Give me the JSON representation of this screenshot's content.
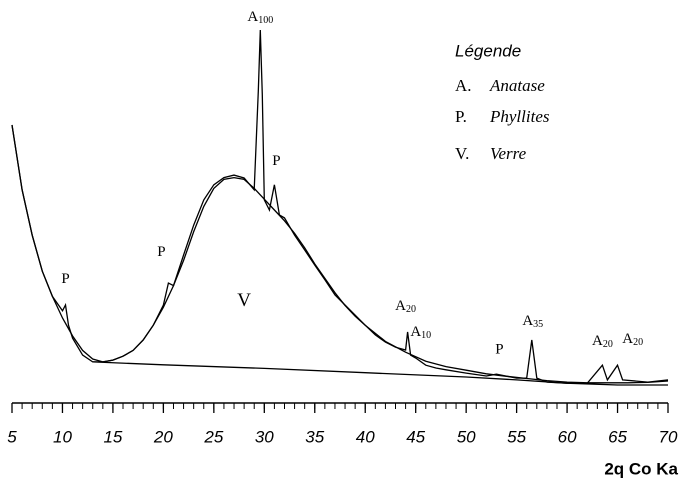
{
  "chart_data": {
    "type": "line",
    "xlim": [
      5,
      70
    ],
    "xticks": [
      5,
      10,
      15,
      20,
      25,
      30,
      35,
      40,
      45,
      50,
      55,
      60,
      65,
      70
    ],
    "ylim": [
      0,
      105
    ],
    "x_label": "2q Co Ka",
    "color": "#000000",
    "series": [
      {
        "x": [
          5,
          6,
          7,
          8,
          9,
          10,
          10.3,
          10.6,
          11,
          12,
          13,
          14,
          15,
          16,
          17,
          18,
          19,
          20,
          20.5,
          21,
          22,
          23,
          24,
          25,
          26,
          27,
          28,
          29,
          29.4,
          29.6,
          29.8,
          30,
          30.5,
          31,
          31.5,
          32,
          33,
          34,
          35,
          36,
          37,
          38,
          39,
          40,
          41,
          42,
          43,
          44,
          44.2,
          44.5,
          45,
          46,
          47,
          48,
          50,
          52,
          53,
          55,
          56,
          56.5,
          57,
          58,
          60,
          62,
          63.5,
          64,
          65,
          65.5,
          68,
          70
        ],
        "values": [
          73.6,
          55.6,
          43,
          33,
          26,
          22,
          23.6,
          18,
          14.4,
          9.7,
          7.8,
          7.8,
          8.3,
          9.4,
          11,
          13.9,
          18,
          23.6,
          29.7,
          29,
          37.5,
          45.8,
          52.8,
          57,
          59,
          59.7,
          58.9,
          55.6,
          83,
          100,
          82,
          52.8,
          50,
          57,
          48.6,
          47.8,
          43,
          38.9,
          34.7,
          30.6,
          26.4,
          23.6,
          20.8,
          18,
          15.3,
          13.3,
          11.9,
          11.1,
          16.1,
          9.7,
          8.9,
          6.9,
          6.1,
          5.6,
          4.7,
          3.9,
          4.4,
          3.3,
          3.3,
          13.9,
          3.3,
          2.2,
          1.9,
          1.9,
          6.9,
          2.8,
          6.9,
          2.8,
          2.2,
          2.8
        ]
      },
      {
        "x": [
          5,
          6,
          7,
          8,
          9,
          10,
          11,
          12,
          13,
          14,
          15,
          16,
          17,
          18,
          19,
          20,
          21,
          22,
          23,
          24,
          25,
          26,
          27,
          28,
          29,
          30,
          31,
          32,
          33,
          34,
          35,
          36,
          37,
          38,
          39,
          40,
          42,
          44,
          46,
          48,
          50,
          52,
          54,
          56,
          58,
          60,
          62,
          64,
          66,
          68,
          70
        ],
        "values": [
          73.6,
          55.6,
          43,
          33,
          26,
          20,
          15,
          11,
          8.6,
          7.8,
          8.3,
          9.4,
          11,
          13.9,
          18,
          23,
          29,
          36,
          44,
          51,
          56,
          58.5,
          59,
          58.5,
          56,
          53,
          50,
          47,
          43.5,
          39.5,
          35,
          31,
          27,
          23.5,
          20.5,
          18,
          13.5,
          10.5,
          8,
          6.5,
          5.5,
          4.5,
          3.8,
          3.2,
          2.6,
          2.2,
          2,
          2,
          2,
          2.1,
          2.5
        ]
      },
      {
        "x": [
          13,
          20,
          30,
          40,
          50,
          55,
          60,
          65,
          70
        ],
        "values": [
          7.8,
          7,
          6,
          4.8,
          3.6,
          2.8,
          1.9,
          1.4,
          1.4
        ]
      }
    ],
    "annotations": [
      {
        "text": "A",
        "sub": "100",
        "x": 29.6,
        "y": 103.3
      },
      {
        "text": "P",
        "x": 31.2,
        "y": 63.3
      },
      {
        "text": "P",
        "x": 19.8,
        "y": 38
      },
      {
        "text": "V",
        "x": 28,
        "y": 24.4
      },
      {
        "text": "P",
        "x": 10.3,
        "y": 30.6
      },
      {
        "text": "A",
        "sub": "20",
        "x": 44,
        "y": 23
      },
      {
        "text": "A",
        "sub": "10",
        "x": 45.5,
        "y": 15.8
      },
      {
        "text": "P",
        "x": 53.3,
        "y": 11
      },
      {
        "text": "A",
        "sub": "35",
        "x": 56.6,
        "y": 18.9
      },
      {
        "text": "A",
        "sub": "20",
        "x": 63.5,
        "y": 13.3
      },
      {
        "text": "A",
        "sub": "20",
        "x": 66.5,
        "y": 13.9
      }
    ],
    "legend": {
      "title": "Légende",
      "items": [
        {
          "key": "A.",
          "label": "Anatase"
        },
        {
          "key": "P.",
          "label": "Phyllites"
        },
        {
          "key": "V.",
          "label": "Verre"
        }
      ]
    }
  }
}
